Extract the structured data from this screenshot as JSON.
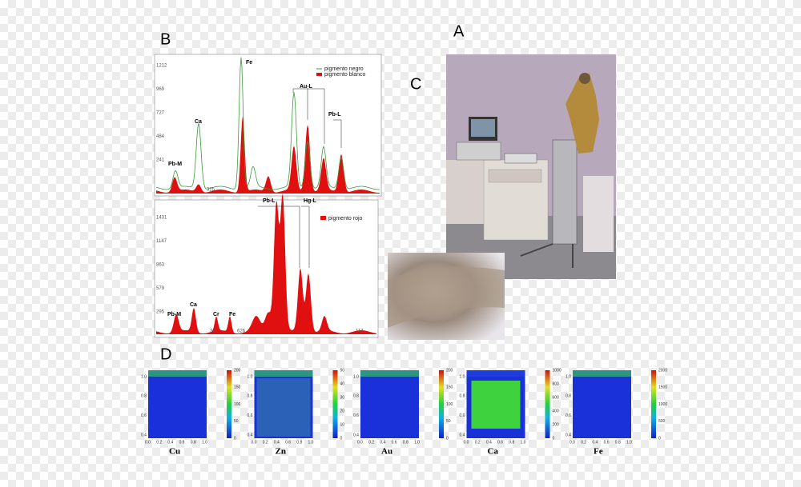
{
  "panel_labels": {
    "a": "A",
    "b": "B",
    "c": "C",
    "d": "D"
  },
  "spectrum_top": {
    "yticks": [
      "1212",
      "969",
      "727",
      "484",
      "241"
    ],
    "xtick": "325",
    "peaks": [
      "Pb-M",
      "Ca",
      "Fe",
      "Au-L",
      "Pb-L"
    ],
    "legend": [
      "pigmento negro",
      "pigmento blanco"
    ]
  },
  "spectrum_bottom": {
    "yticks": [
      "1431",
      "1147",
      "863",
      "579",
      "295"
    ],
    "xticks": [
      "36",
      "626",
      "117"
    ],
    "peaks": [
      "Pb-M",
      "Ca",
      "Cr",
      "Fe",
      "Pb-L",
      "Hg-L"
    ],
    "legend": [
      "pigmento rojo"
    ]
  },
  "map_axes": {
    "yticks": [
      "1.0",
      "0.8",
      "0.6",
      "0.4"
    ],
    "xticks": [
      "0.0",
      "0.2",
      "0.4",
      "0.6",
      "0.8",
      "1.0"
    ]
  },
  "maps": [
    {
      "element": "Cu",
      "colorbar": [
        "200",
        "150",
        "100",
        "50",
        "0"
      ]
    },
    {
      "element": "Zn",
      "colorbar": [
        "50",
        "40",
        "30",
        "20",
        "10",
        "0"
      ]
    },
    {
      "element": "Au",
      "colorbar": [
        "200",
        "150",
        "100",
        "50",
        "0"
      ]
    },
    {
      "element": "Ca",
      "colorbar": [
        "1000",
        "800",
        "600",
        "400",
        "200",
        "0"
      ]
    },
    {
      "element": "Fe",
      "colorbar": [
        "2000",
        "1500",
        "1000",
        "500",
        "0"
      ]
    }
  ]
}
